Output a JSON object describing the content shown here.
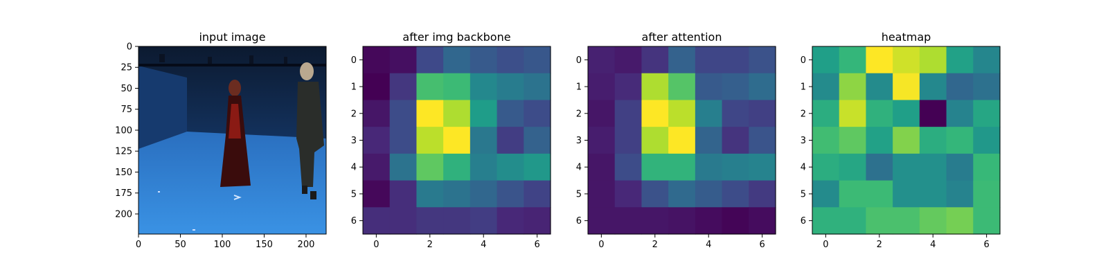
{
  "figure": {
    "background": "#ffffff",
    "colormap": "viridis"
  },
  "chart_data": [
    {
      "type": "image",
      "title": "input image",
      "xlabel": "",
      "ylabel": "",
      "xlim": [
        0,
        224
      ],
      "ylim": [
        224,
        0
      ],
      "xticks": [
        0,
        50,
        100,
        150,
        200
      ],
      "yticks": [
        0,
        25,
        50,
        75,
        100,
        125,
        150,
        175,
        200
      ],
      "scene": {
        "description_colors": {
          "wall_top": "#0c1a30",
          "wall_bottom": "#1a4a8c",
          "floor_far": "#2a6fbf",
          "floor_near": "#3a8ee0"
        },
        "figures": [
          "person-left-red-dress",
          "person-right-dark-coat"
        ]
      }
    },
    {
      "type": "heatmap",
      "title": "after img backbone",
      "xlabel": "",
      "ylabel": "",
      "xticks": [
        0,
        2,
        4,
        6
      ],
      "yticks": [
        0,
        1,
        2,
        3,
        4,
        5,
        6
      ],
      "vmin": 0,
      "vmax": 1,
      "values": [
        [
          0.02,
          0.04,
          0.22,
          0.33,
          0.28,
          0.24,
          0.27
        ],
        [
          0.0,
          0.16,
          0.7,
          0.68,
          0.47,
          0.42,
          0.38
        ],
        [
          0.06,
          0.23,
          1.0,
          0.88,
          0.55,
          0.28,
          0.23
        ],
        [
          0.11,
          0.23,
          0.9,
          1.0,
          0.4,
          0.18,
          0.31
        ],
        [
          0.07,
          0.38,
          0.75,
          0.64,
          0.43,
          0.49,
          0.53
        ],
        [
          0.02,
          0.13,
          0.41,
          0.38,
          0.33,
          0.26,
          0.2
        ],
        [
          0.13,
          0.13,
          0.16,
          0.16,
          0.18,
          0.11,
          0.1
        ]
      ]
    },
    {
      "type": "heatmap",
      "title": "after attention",
      "xlabel": "",
      "ylabel": "",
      "xticks": [
        0,
        2,
        4,
        6
      ],
      "yticks": [
        0,
        1,
        2,
        3,
        4,
        5,
        6
      ],
      "vmin": 0,
      "vmax": 1,
      "values": [
        [
          0.09,
          0.07,
          0.15,
          0.31,
          0.21,
          0.21,
          0.25
        ],
        [
          0.08,
          0.12,
          0.88,
          0.73,
          0.28,
          0.3,
          0.35
        ],
        [
          0.06,
          0.19,
          1.0,
          0.9,
          0.43,
          0.21,
          0.19
        ],
        [
          0.08,
          0.19,
          0.88,
          1.0,
          0.32,
          0.15,
          0.26
        ],
        [
          0.06,
          0.23,
          0.65,
          0.65,
          0.41,
          0.43,
          0.45
        ],
        [
          0.06,
          0.11,
          0.25,
          0.34,
          0.29,
          0.23,
          0.17
        ],
        [
          0.06,
          0.06,
          0.06,
          0.05,
          0.03,
          0.01,
          0.03
        ]
      ]
    },
    {
      "type": "heatmap",
      "title": "heatmap",
      "xlabel": "",
      "ylabel": "",
      "xticks": [
        0,
        2,
        4,
        6
      ],
      "yticks": [
        0,
        1,
        2,
        3,
        4,
        5,
        6
      ],
      "vmin": 0,
      "vmax": 1,
      "values": [
        [
          0.56,
          0.66,
          1.0,
          0.93,
          0.88,
          0.57,
          0.46
        ],
        [
          0.48,
          0.83,
          0.48,
          0.99,
          0.47,
          0.33,
          0.37
        ],
        [
          0.62,
          0.92,
          0.64,
          0.56,
          0.0,
          0.45,
          0.59
        ],
        [
          0.69,
          0.75,
          0.57,
          0.81,
          0.62,
          0.66,
          0.53
        ],
        [
          0.62,
          0.59,
          0.37,
          0.5,
          0.5,
          0.42,
          0.67
        ],
        [
          0.48,
          0.68,
          0.68,
          0.5,
          0.5,
          0.45,
          0.68
        ],
        [
          0.64,
          0.64,
          0.71,
          0.71,
          0.76,
          0.79,
          0.68
        ]
      ]
    }
  ]
}
